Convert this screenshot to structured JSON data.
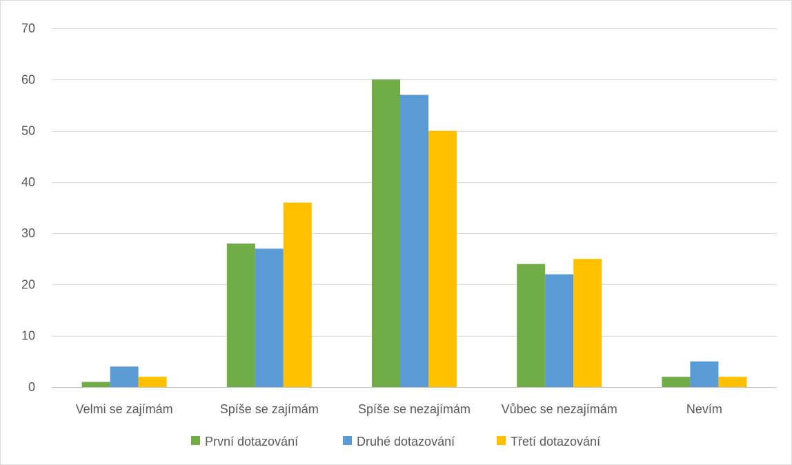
{
  "chart_data": {
    "type": "bar",
    "title": "",
    "xlabel": "",
    "ylabel": "",
    "categories": [
      "Velmi se zajímám",
      "Spíše se zajímám",
      "Spíše se nezajímám",
      "Vůbec se nezajímám",
      "Nevím"
    ],
    "series": [
      {
        "name": "První dotazování",
        "color": "#70ad47",
        "values": [
          1,
          28,
          60,
          24,
          2
        ]
      },
      {
        "name": "Druhé dotazování",
        "color": "#5b9bd5",
        "values": [
          4,
          27,
          57,
          22,
          5
        ]
      },
      {
        "name": "Třetí dotazování",
        "color": "#ffc000",
        "values": [
          2,
          36,
          50,
          25,
          2
        ]
      }
    ],
    "ylim": [
      0,
      70
    ],
    "yticks": [
      0,
      10,
      20,
      30,
      40,
      50,
      60,
      70
    ],
    "grid": true,
    "legend_position": "bottom"
  }
}
